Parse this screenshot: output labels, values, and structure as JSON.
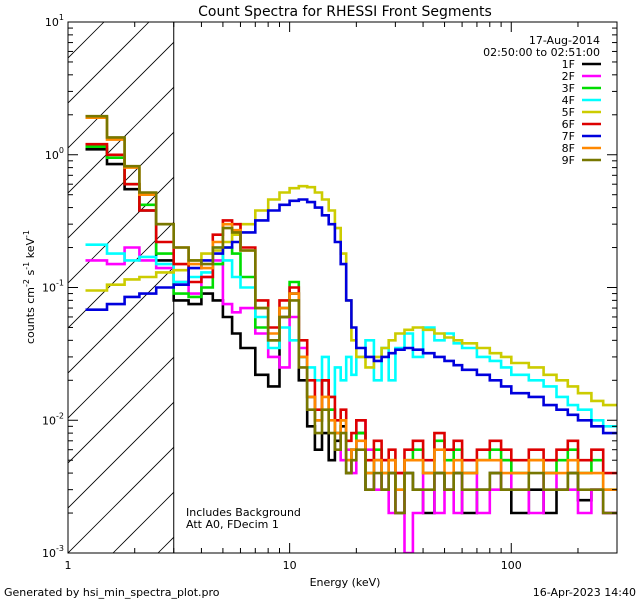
{
  "chart_data": {
    "type": "line",
    "title": "Count Spectra for RHESSI Front Segments",
    "xlabel": "Energy (keV)",
    "ylabel": {
      "prefix": "counts cm",
      "sup1": "-2",
      "mid1": " s",
      "sup2": "-1",
      "mid2": " keV",
      "sup3": "-1"
    },
    "xscale": "log",
    "yscale": "log",
    "xlim": [
      1,
      300
    ],
    "ylim": [
      0.001,
      10
    ],
    "x_ticks": [
      {
        "value": 1,
        "label": "1"
      },
      {
        "value": 10,
        "label": "10"
      },
      {
        "value": 100,
        "label": "100"
      }
    ],
    "y_ticks": [
      {
        "value": 0.001,
        "base": "10",
        "exp": "-3"
      },
      {
        "value": 0.01,
        "base": "10",
        "exp": "-2"
      },
      {
        "value": 0.1,
        "base": "10",
        "exp": "-1"
      },
      {
        "value": 1,
        "base": "10",
        "exp": "0"
      },
      {
        "value": 10,
        "base": "10",
        "exp": "1"
      }
    ],
    "hatched_region": {
      "x_from": 1,
      "x_to": 3
    },
    "date": "17-Aug-2014",
    "time_range": "02:50:00 to 02:51:00",
    "annotations": [
      "Includes Background",
      "Att A0, FDecim 1"
    ],
    "footer_left": "Generated by hsi_min_spectra_plot.pro",
    "footer_right": "16-Apr-2023 14:40",
    "edges": [
      1.2,
      1.5,
      1.8,
      2.1,
      2.5,
      3.0,
      3.5,
      4.0,
      4.5,
      5.0,
      5.5,
      6.0,
      7,
      8,
      9,
      10,
      11,
      12,
      13,
      14,
      15,
      16,
      17,
      18,
      19,
      20,
      22,
      24,
      26,
      28,
      30,
      33,
      36,
      40,
      45,
      50,
      55,
      60,
      70,
      80,
      90,
      100,
      120,
      140,
      160,
      180,
      200,
      230,
      260,
      300
    ],
    "series": [
      {
        "name": "1F",
        "color": "#000000",
        "values": [
          1.1,
          0.85,
          0.55,
          0.38,
          0.16,
          0.08,
          0.075,
          0.09,
          0.08,
          0.06,
          0.045,
          0.035,
          0.022,
          0.018,
          0.06,
          0.09,
          0.02,
          0.009,
          0.006,
          0.008,
          0.005,
          0.007,
          0.009,
          0.004,
          0.006,
          0.008,
          0.003,
          0.005,
          0.003,
          0.004,
          0.002,
          0.004,
          0.003,
          0.002,
          0.004,
          0.003,
          0.004,
          0.002,
          0.003,
          0.004,
          0.003,
          0.002,
          0.003,
          0.002,
          0.003,
          0.004,
          0.0025,
          0.003,
          0.002
        ]
      },
      {
        "name": "2F",
        "color": "#ff00ff",
        "values": [
          0.16,
          0.15,
          0.2,
          0.16,
          0.14,
          0.11,
          0.09,
          0.12,
          0.16,
          0.075,
          0.065,
          0.07,
          0.045,
          0.03,
          0.025,
          0.06,
          0.035,
          0.015,
          0.01,
          0.02,
          0.012,
          0.008,
          0.005,
          0.006,
          0.004,
          0.01,
          0.006,
          0.003,
          0.005,
          0.002,
          0.004,
          0.001,
          0.002,
          0.004,
          0.002,
          0.003,
          0.002,
          0.004,
          0.002,
          0.003,
          0.005,
          0.003,
          0.002,
          0.004,
          0.003,
          0.003,
          0.002,
          0.003,
          0.002
        ]
      },
      {
        "name": "3F",
        "color": "#00dd00",
        "values": [
          1.15,
          0.95,
          0.6,
          0.42,
          0.18,
          0.09,
          0.085,
          0.1,
          0.15,
          0.2,
          0.18,
          0.12,
          0.05,
          0.04,
          0.07,
          0.11,
          0.03,
          0.015,
          0.01,
          0.02,
          0.012,
          0.008,
          0.01,
          0.005,
          0.006,
          0.008,
          0.004,
          0.006,
          0.004,
          0.005,
          0.003,
          0.005,
          0.006,
          0.004,
          0.007,
          0.005,
          0.006,
          0.004,
          0.005,
          0.006,
          0.005,
          0.004,
          0.005,
          0.004,
          0.005,
          0.006,
          0.004,
          0.005,
          0.003
        ]
      },
      {
        "name": "4F",
        "color": "#00ffff",
        "values": [
          0.21,
          0.18,
          0.16,
          0.17,
          0.15,
          0.11,
          0.12,
          0.13,
          0.2,
          0.16,
          0.12,
          0.1,
          0.06,
          0.035,
          0.05,
          0.04,
          0.03,
          0.025,
          0.02,
          0.03,
          0.015,
          0.025,
          0.02,
          0.03,
          0.022,
          0.03,
          0.04,
          0.02,
          0.035,
          0.02,
          0.035,
          0.045,
          0.03,
          0.05,
          0.04,
          0.045,
          0.038,
          0.035,
          0.03,
          0.028,
          0.025,
          0.022,
          0.02,
          0.018,
          0.015,
          0.013,
          0.012,
          0.01,
          0.009
        ]
      },
      {
        "name": "5F",
        "color": "#cccc00",
        "values": [
          0.095,
          0.105,
          0.115,
          0.12,
          0.13,
          0.135,
          0.16,
          0.18,
          0.19,
          0.22,
          0.25,
          0.3,
          0.38,
          0.46,
          0.52,
          0.56,
          0.58,
          0.57,
          0.52,
          0.46,
          0.38,
          0.28,
          0.18,
          0.08,
          0.04,
          0.03,
          0.025,
          0.03,
          0.035,
          0.04,
          0.045,
          0.048,
          0.05,
          0.048,
          0.045,
          0.042,
          0.04,
          0.038,
          0.035,
          0.032,
          0.03,
          0.027,
          0.025,
          0.022,
          0.02,
          0.018,
          0.016,
          0.014,
          0.013
        ]
      },
      {
        "name": "6F",
        "color": "#dd0000",
        "values": [
          1.2,
          1.0,
          0.6,
          0.38,
          0.22,
          0.15,
          0.11,
          0.12,
          0.25,
          0.32,
          0.3,
          0.2,
          0.08,
          0.05,
          0.08,
          0.1,
          0.04,
          0.02,
          0.012,
          0.02,
          0.015,
          0.01,
          0.012,
          0.007,
          0.008,
          0.01,
          0.005,
          0.007,
          0.005,
          0.006,
          0.004,
          0.006,
          0.007,
          0.005,
          0.008,
          0.006,
          0.007,
          0.005,
          0.006,
          0.007,
          0.006,
          0.005,
          0.006,
          0.005,
          0.006,
          0.007,
          0.005,
          0.006,
          0.004
        ]
      },
      {
        "name": "7F",
        "color": "#0000dd",
        "values": [
          0.068,
          0.075,
          0.085,
          0.09,
          0.1,
          0.105,
          0.14,
          0.16,
          0.18,
          0.2,
          0.22,
          0.26,
          0.32,
          0.38,
          0.42,
          0.45,
          0.46,
          0.44,
          0.4,
          0.35,
          0.3,
          0.22,
          0.15,
          0.08,
          0.05,
          0.035,
          0.03,
          0.028,
          0.03,
          0.032,
          0.034,
          0.035,
          0.034,
          0.032,
          0.03,
          0.028,
          0.026,
          0.024,
          0.022,
          0.02,
          0.018,
          0.016,
          0.015,
          0.013,
          0.012,
          0.011,
          0.01,
          0.009,
          0.008
        ]
      },
      {
        "name": "8F",
        "color": "#ff8800",
        "values": [
          1.9,
          1.3,
          0.8,
          0.5,
          0.3,
          0.2,
          0.15,
          0.14,
          0.22,
          0.3,
          0.27,
          0.19,
          0.07,
          0.045,
          0.07,
          0.09,
          0.03,
          0.015,
          0.01,
          0.015,
          0.01,
          0.008,
          0.01,
          0.005,
          0.006,
          0.007,
          0.004,
          0.005,
          0.004,
          0.005,
          0.003,
          0.005,
          0.005,
          0.004,
          0.006,
          0.004,
          0.005,
          0.004,
          0.005,
          0.005,
          0.004,
          0.004,
          0.005,
          0.004,
          0.004,
          0.005,
          0.004,
          0.004,
          0.003
        ]
      },
      {
        "name": "9F",
        "color": "#777700",
        "values": [
          1.95,
          1.35,
          0.82,
          0.52,
          0.3,
          0.2,
          0.16,
          0.15,
          0.2,
          0.28,
          0.26,
          0.19,
          0.07,
          0.04,
          0.06,
          0.08,
          0.025,
          0.012,
          0.008,
          0.012,
          0.008,
          0.006,
          0.008,
          0.004,
          0.005,
          0.006,
          0.003,
          0.004,
          0.003,
          0.004,
          0.002,
          0.004,
          0.003,
          0.003,
          0.004,
          0.003,
          0.004,
          0.003,
          0.003,
          0.004,
          0.003,
          0.003,
          0.004,
          0.003,
          0.003,
          0.004,
          0.003,
          0.003,
          0.002
        ]
      }
    ]
  }
}
